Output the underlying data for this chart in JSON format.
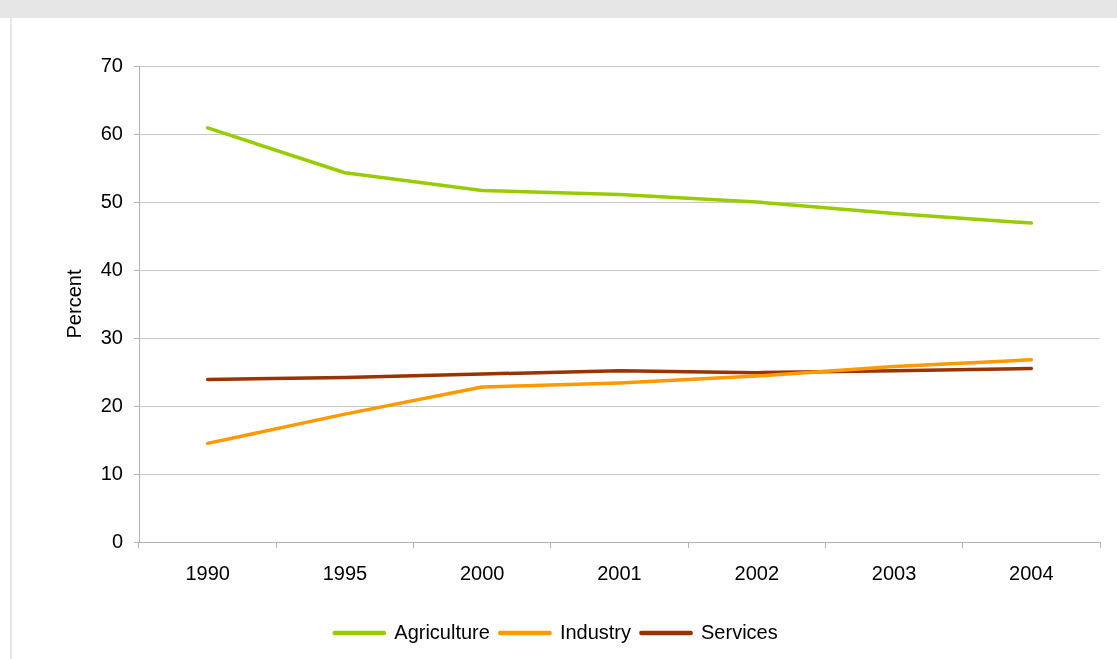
{
  "chart_data": {
    "type": "line",
    "ylabel": "Percent",
    "categories": [
      "1990",
      "1995",
      "2000",
      "2001",
      "2002",
      "2003",
      "2004"
    ],
    "series": [
      {
        "name": "Agriculture",
        "color": "#99cc00",
        "values": [
          60.9,
          54.3,
          51.7,
          51.1,
          50.0,
          48.3,
          46.9
        ]
      },
      {
        "name": "Industry",
        "color": "#ff9900",
        "values": [
          14.5,
          18.8,
          22.8,
          23.4,
          24.4,
          25.8,
          26.8
        ]
      },
      {
        "name": "Services",
        "color": "#993300",
        "values": [
          23.9,
          24.2,
          24.7,
          25.2,
          24.9,
          25.2,
          25.5
        ]
      }
    ],
    "ylim": [
      0,
      70
    ],
    "yticks": [
      0,
      10,
      20,
      30,
      40,
      50,
      60,
      70
    ],
    "grid": "y",
    "legend": "bottom"
  }
}
